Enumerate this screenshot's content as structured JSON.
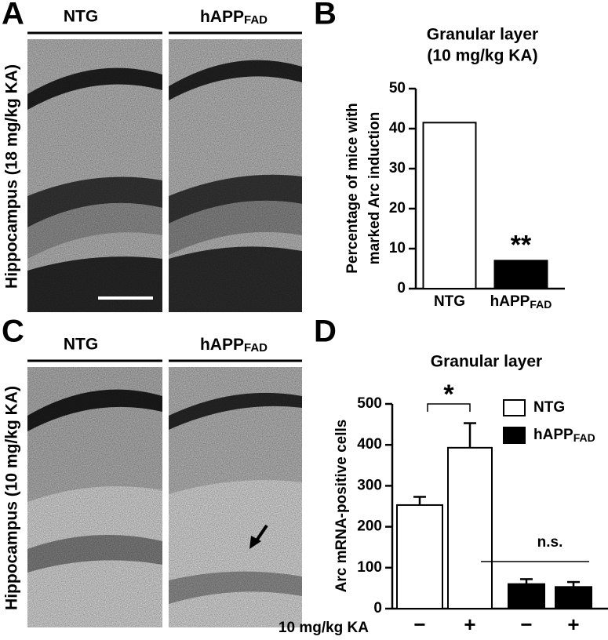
{
  "panel_a": {
    "label": "A",
    "columns": [
      "NTG",
      "hAPP"
    ],
    "column_subscripts": [
      null,
      "FAD"
    ],
    "ylabel": "Hippocampus (18 mg/kg KA)"
  },
  "panel_c": {
    "label": "C",
    "columns": [
      "NTG",
      "hAPP"
    ],
    "column_subscripts": [
      null,
      "FAD"
    ],
    "ylabel": "Hippocampus (10 mg/kg KA)"
  },
  "chart_data": [
    {
      "label": "B",
      "type": "bar",
      "title": [
        "Granular layer",
        "(10 mg/kg KA)"
      ],
      "ylabel": [
        "Percentage of mice with",
        "marked  Arc induction"
      ],
      "categories": [
        "NTG",
        "hAPP"
      ],
      "category_subscripts": [
        null,
        "FAD"
      ],
      "values": [
        41.5,
        7
      ],
      "colors": [
        "#ffffff",
        "#000000"
      ],
      "ylim": [
        0,
        50
      ],
      "yticks": [
        0,
        10,
        20,
        30,
        40,
        50
      ],
      "annotations": [
        "**"
      ]
    },
    {
      "label": "D",
      "type": "grouped_bar",
      "title": [
        "Granular layer"
      ],
      "ylabel": [
        "Arc mRNA-positive cells"
      ],
      "x_row_label": "10 mg/kg KA",
      "categories": [
        "−",
        "+",
        "−",
        "+"
      ],
      "series": [
        {
          "name": "NTG",
          "color": "#ffffff",
          "values": [
            253,
            393,
            null,
            null
          ],
          "errors": [
            20,
            60,
            null,
            null
          ]
        },
        {
          "name": "hAPP",
          "name_sub": "FAD",
          "color": "#000000",
          "values": [
            null,
            null,
            60,
            53
          ],
          "errors": [
            null,
            null,
            12,
            12
          ]
        }
      ],
      "ylim": [
        0,
        500
      ],
      "yticks": [
        0,
        100,
        200,
        300,
        400,
        500
      ],
      "legend": "upper right",
      "annotations": [
        "*",
        "n.s."
      ]
    }
  ]
}
